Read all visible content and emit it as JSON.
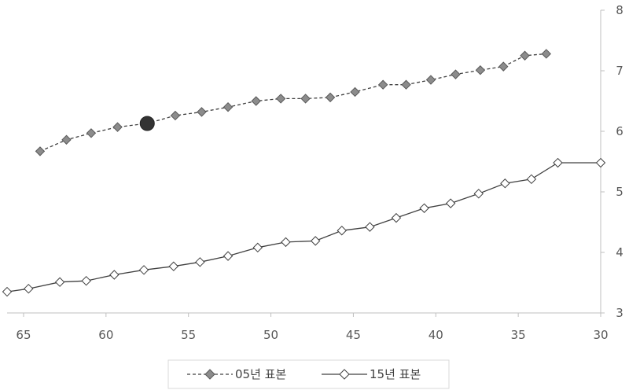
{
  "chart_data": {
    "type": "line",
    "title": "",
    "xlabel": "",
    "ylabel": "",
    "x_reversed": true,
    "xlim": [
      30,
      66
    ],
    "ylim": [
      3,
      8
    ],
    "xticks": [
      65,
      60,
      55,
      50,
      45,
      40,
      35,
      30
    ],
    "yticks": [
      3,
      4,
      5,
      6,
      7,
      8
    ],
    "grid": false,
    "legend_position": "bottom",
    "series": [
      {
        "name": "05년 표본",
        "line_style": "dashed",
        "marker": "diamond",
        "marker_color": "#8c8c8c",
        "x": [
          64,
          62.4,
          60.9,
          59.3,
          57.5,
          55.8,
          54.2,
          52.6,
          50.9,
          49.4,
          47.9,
          46.4,
          44.9,
          43.2,
          41.8,
          40.3,
          38.8,
          37.3,
          35.9,
          34.6,
          33.3
        ],
        "y": [
          5.67,
          5.86,
          5.97,
          6.07,
          6.13,
          6.26,
          6.32,
          6.4,
          6.5,
          6.54,
          6.54,
          6.56,
          6.65,
          6.77,
          6.77,
          6.85,
          6.94,
          7.01,
          7.07,
          7.25,
          7.28
        ],
        "highlight": {
          "x": 57.5,
          "y": 6.13,
          "color": "#333333"
        }
      },
      {
        "name": "15년 표본",
        "line_style": "solid",
        "marker": "diamond",
        "marker_color": "#ffffff",
        "x": [
          66,
          64.7,
          62.8,
          61.2,
          59.5,
          57.7,
          55.9,
          54.3,
          52.6,
          50.8,
          49.1,
          47.3,
          45.7,
          44.0,
          42.4,
          40.7,
          39.1,
          37.4,
          35.8,
          34.2,
          32.6,
          30.0
        ],
        "y": [
          3.35,
          3.4,
          3.51,
          3.53,
          3.63,
          3.71,
          3.77,
          3.84,
          3.94,
          4.08,
          4.17,
          4.19,
          4.36,
          4.42,
          4.57,
          4.73,
          4.81,
          4.97,
          5.14,
          5.21,
          5.48,
          5.48
        ]
      }
    ]
  }
}
